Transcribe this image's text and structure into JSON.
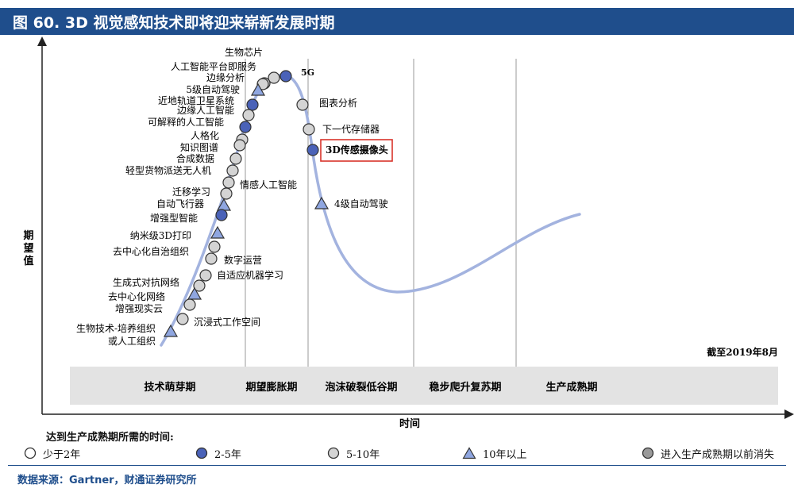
{
  "figure": {
    "title": "图 60. 3D 视觉感知技术即将迎来崭新发展时期",
    "y_axis_label": "期望值",
    "x_axis_label": "时间",
    "as_of": "截至2019年8月",
    "source": "数据来源：Gartner，财通证券研究所"
  },
  "colors": {
    "title_bg": "#1f4e8c",
    "curve": "#a3b3df",
    "blue_fill": "#4a62b8",
    "gray_fill": "#d4d4d4",
    "dark_gray_fill": "#9a9a9a",
    "highlight_box": "#d9342b",
    "phase_band": "#e3e3e3"
  },
  "phases": [
    "技术萌芽期",
    "期望膨胀期",
    "泡沫破裂低谷期",
    "稳步爬升复苏期",
    "生产成熟期"
  ],
  "legend": {
    "heading": "达到生产成熟期所需的时间:",
    "items": [
      {
        "label": "少于2年",
        "symbol": "circle-white"
      },
      {
        "label": "2-5年",
        "symbol": "circle-blue"
      },
      {
        "label": "5-10年",
        "symbol": "circle-gray"
      },
      {
        "label": "10年以上",
        "symbol": "triangle"
      },
      {
        "label": "进入生产成熟期以前消失",
        "symbol": "circle-dark-gray"
      }
    ]
  },
  "technologies": [
    {
      "name": "生物芯片",
      "symbol": "circle-gray"
    },
    {
      "name": "5G",
      "symbol": "circle-blue"
    },
    {
      "name": "人工智能平台即服务",
      "symbol": "circle-gray"
    },
    {
      "name": "边缘分析",
      "symbol": "circle-gray"
    },
    {
      "name": "5级自动驾驶",
      "symbol": "triangle"
    },
    {
      "name": "近地轨道卫星系统",
      "symbol": "circle-blue"
    },
    {
      "name": "边缘人工智能",
      "symbol": "circle-gray"
    },
    {
      "name": "可解释的人工智能",
      "symbol": "circle-blue"
    },
    {
      "name": "人格化",
      "symbol": "circle-gray"
    },
    {
      "name": "知识图谱",
      "symbol": "circle-gray"
    },
    {
      "name": "合成数据",
      "symbol": "circle-gray"
    },
    {
      "name": "轻型货物派送无人机",
      "symbol": "circle-gray"
    },
    {
      "name": "情感人工智能",
      "symbol": "circle-gray"
    },
    {
      "name": "迁移学习",
      "symbol": "circle-gray"
    },
    {
      "name": "自动飞行器",
      "symbol": "triangle"
    },
    {
      "name": "增强型智能",
      "symbol": "circle-blue"
    },
    {
      "name": "纳米级3D打印",
      "symbol": "triangle"
    },
    {
      "name": "去中心化自治组织",
      "symbol": "circle-gray"
    },
    {
      "name": "数字运营",
      "symbol": "circle-gray"
    },
    {
      "name": "自适应机器学习",
      "symbol": "circle-gray"
    },
    {
      "name": "生成式对抗网络",
      "symbol": "circle-gray"
    },
    {
      "name": "去中心化网络",
      "symbol": "triangle"
    },
    {
      "name": "增强现实云",
      "symbol": "circle-gray"
    },
    {
      "name": "沉浸式工作空间",
      "symbol": "circle-gray"
    },
    {
      "name": "生物技术-培养组织或人工组织",
      "lines": [
        "生物技术-培养组织",
        "或人工组织"
      ],
      "symbol": "triangle"
    },
    {
      "name": "图表分析",
      "symbol": "circle-gray"
    },
    {
      "name": "下一代存储器",
      "symbol": "circle-gray"
    },
    {
      "name": "3D传感摄像头",
      "symbol": "circle-blue",
      "highlighted": true
    },
    {
      "name": "4级自动驾驶",
      "symbol": "triangle"
    }
  ]
}
